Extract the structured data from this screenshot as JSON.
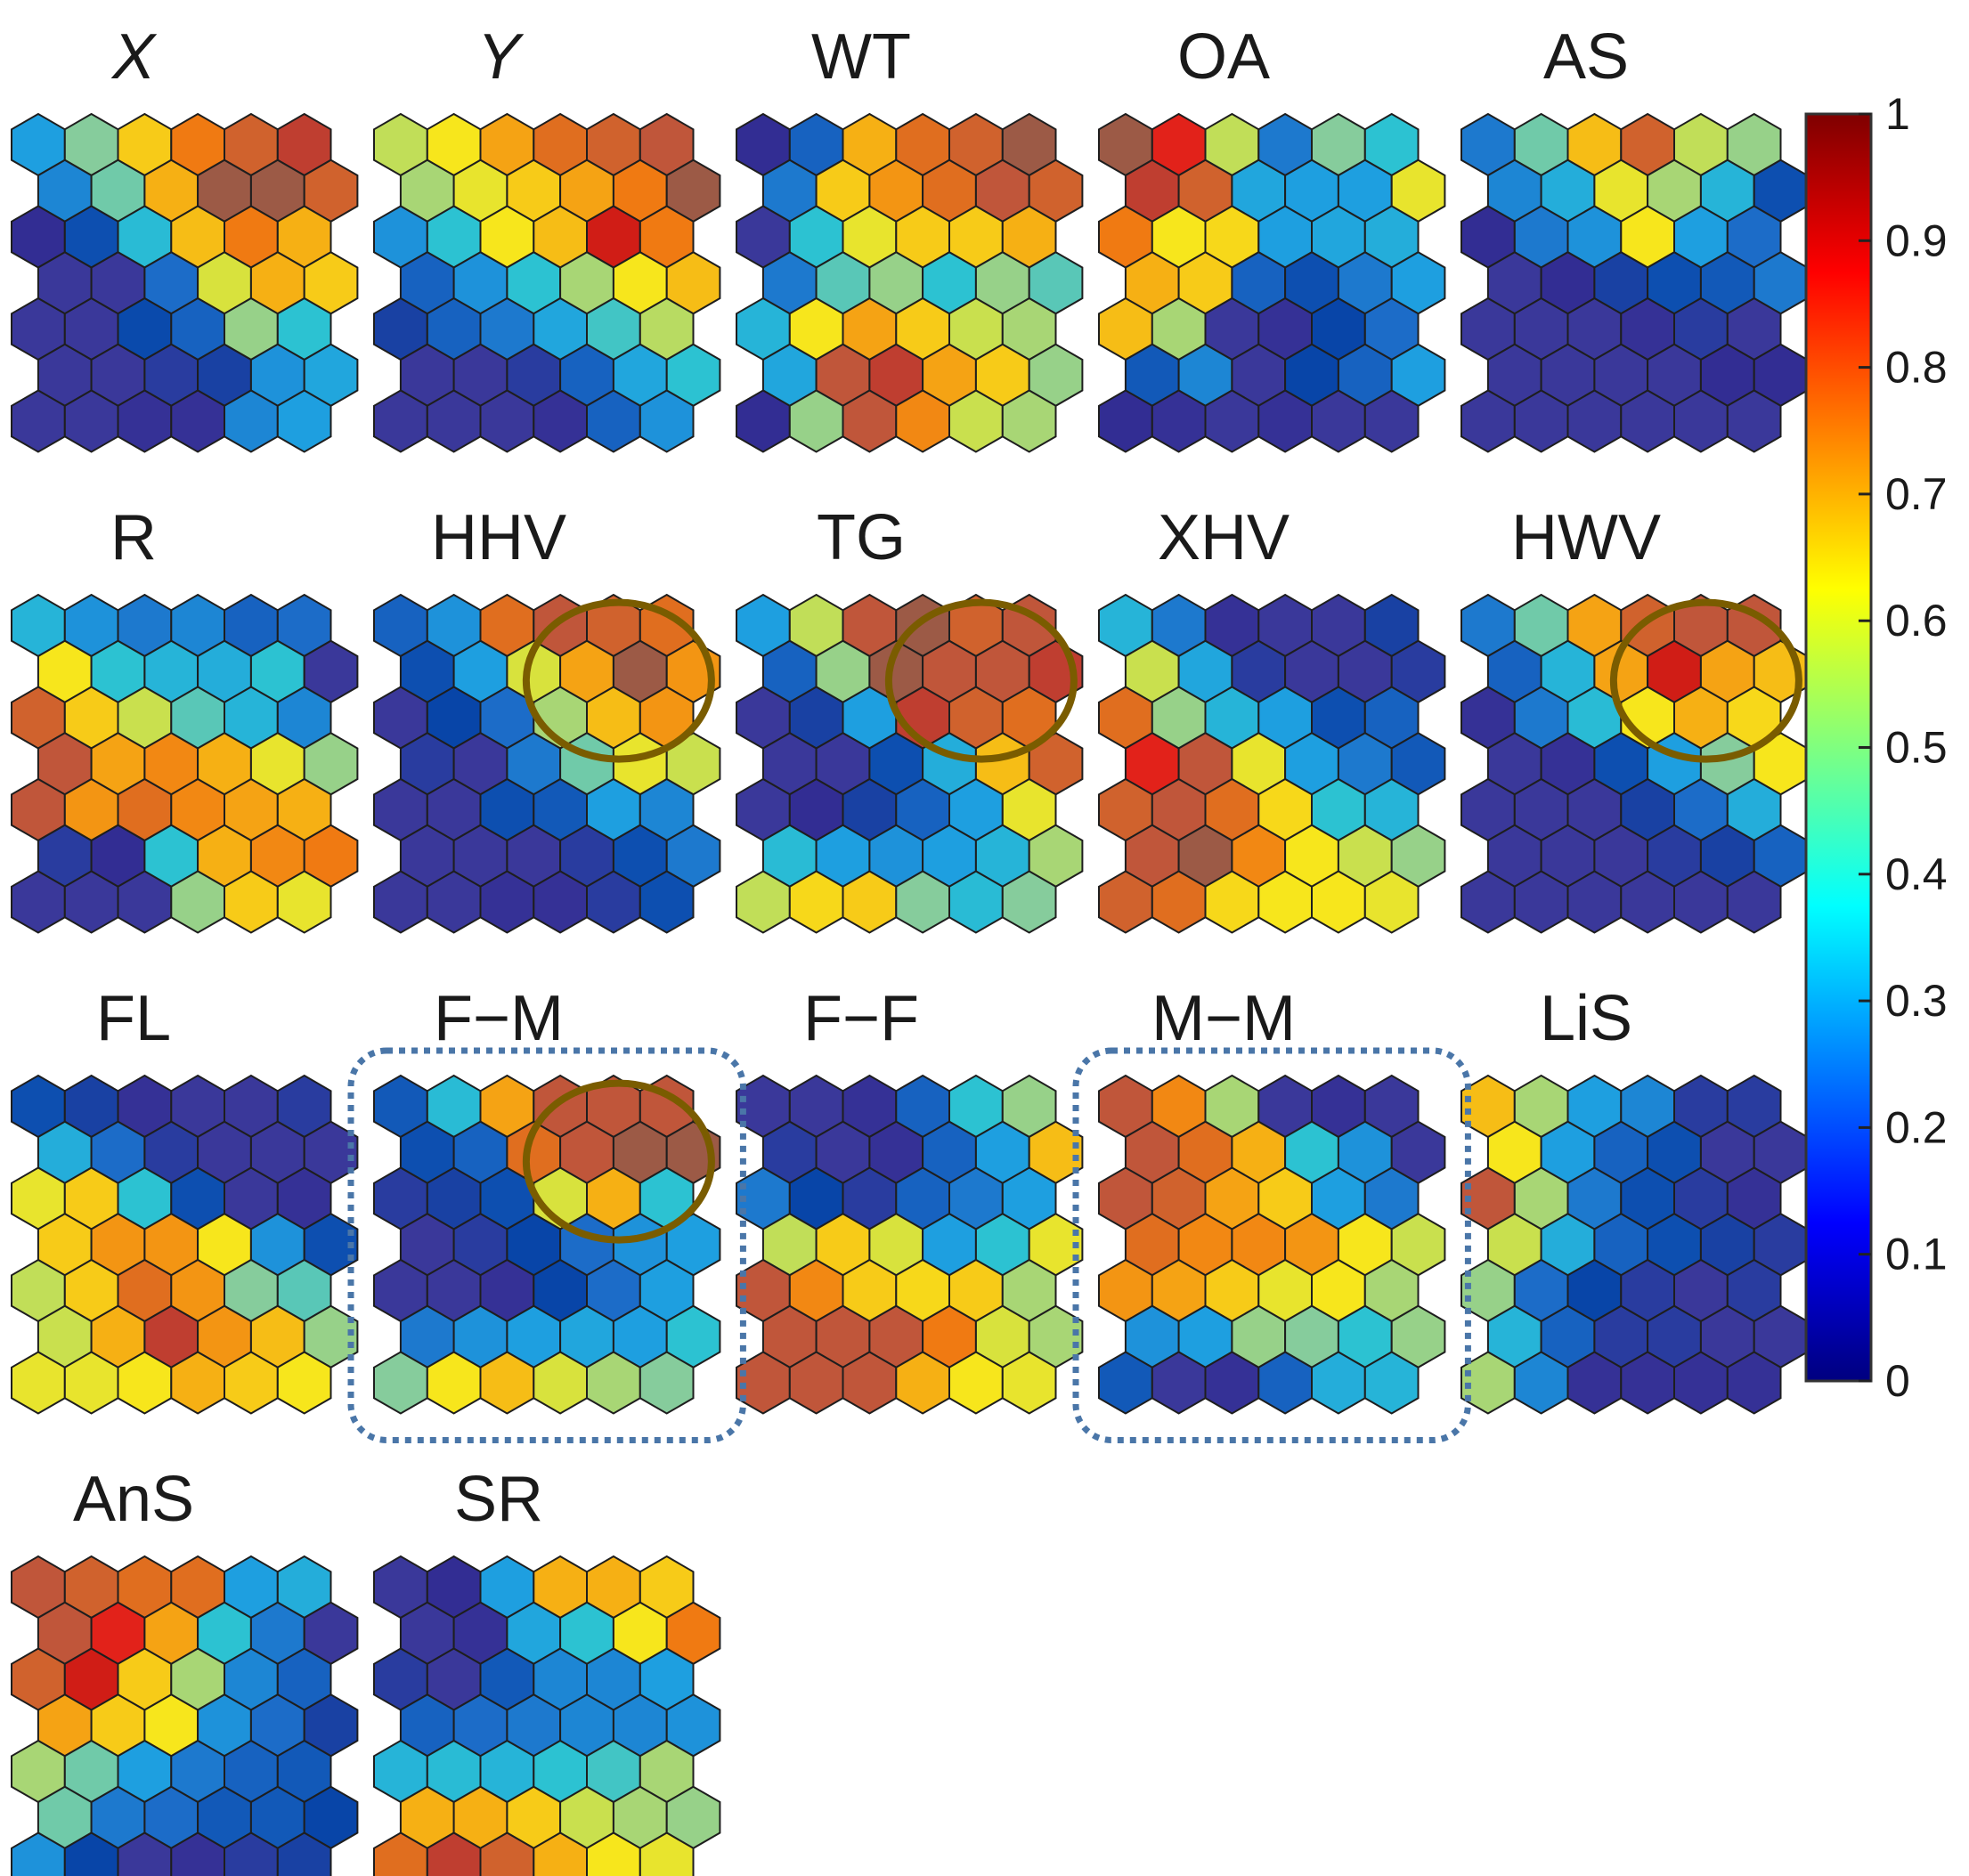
{
  "chart_data": {
    "type": "heatmap",
    "grid_shape": "hexagonal",
    "grid_rows": 7,
    "grid_cols": 6,
    "colormap": "jet",
    "colorbar": {
      "min": 0,
      "max": 1,
      "ticks": [
        "0",
        "0.1",
        "0.2",
        "0.3",
        "0.4",
        "0.5",
        "0.6",
        "0.7",
        "0.8",
        "0.9",
        "1"
      ],
      "placement": "right"
    },
    "panels": [
      {
        "title": "X",
        "italic": true,
        "values": [
          [
            0.3,
            0.48,
            0.66,
            0.78,
            0.82,
            0.88
          ],
          [
            0.26,
            0.46,
            0.7,
            0.86,
            0.86,
            0.82
          ],
          [
            0.05,
            0.16,
            0.38,
            0.68,
            0.78,
            0.7
          ],
          [
            0.08,
            0.08,
            0.22,
            0.58,
            0.7,
            0.66
          ],
          [
            0.08,
            0.08,
            0.15,
            0.2,
            0.5,
            0.4
          ],
          [
            0.08,
            0.08,
            0.1,
            0.12,
            0.28,
            0.32
          ],
          [
            0.08,
            0.08,
            0.06,
            0.06,
            0.26,
            0.3
          ]
        ]
      },
      {
        "title": "Y",
        "italic": true,
        "values": [
          [
            0.55,
            0.62,
            0.72,
            0.8,
            0.82,
            0.84
          ],
          [
            0.52,
            0.6,
            0.66,
            0.72,
            0.78,
            0.86
          ],
          [
            0.28,
            0.4,
            0.62,
            0.68,
            0.92,
            0.78
          ],
          [
            0.2,
            0.28,
            0.4,
            0.52,
            0.62,
            0.68
          ],
          [
            0.12,
            0.2,
            0.24,
            0.32,
            0.42,
            0.54
          ],
          [
            0.08,
            0.08,
            0.1,
            0.2,
            0.32,
            0.4
          ],
          [
            0.08,
            0.08,
            0.08,
            0.06,
            0.2,
            0.28
          ]
        ]
      },
      {
        "title": "WT",
        "values": [
          [
            0.05,
            0.2,
            0.7,
            0.8,
            0.82,
            0.86
          ],
          [
            0.24,
            0.66,
            0.74,
            0.8,
            0.84,
            0.82
          ],
          [
            0.08,
            0.4,
            0.6,
            0.66,
            0.66,
            0.7
          ],
          [
            0.24,
            0.44,
            0.5,
            0.4,
            0.5,
            0.44
          ],
          [
            0.36,
            0.62,
            0.72,
            0.66,
            0.56,
            0.52
          ],
          [
            0.32,
            0.84,
            0.88,
            0.72,
            0.66,
            0.5
          ],
          [
            0.05,
            0.5,
            0.84,
            0.76,
            0.56,
            0.52
          ]
        ]
      },
      {
        "title": "OA",
        "values": [
          [
            0.86,
            0.9,
            0.55,
            0.24,
            0.48,
            0.4
          ],
          [
            0.88,
            0.82,
            0.32,
            0.3,
            0.3,
            0.6
          ],
          [
            0.78,
            0.62,
            0.64,
            0.3,
            0.32,
            0.34
          ],
          [
            0.7,
            0.66,
            0.2,
            0.16,
            0.24,
            0.3
          ],
          [
            0.68,
            0.52,
            0.08,
            0.06,
            0.14,
            0.22
          ],
          [
            0.18,
            0.26,
            0.08,
            0.14,
            0.2,
            0.3
          ],
          [
            0.05,
            0.06,
            0.08,
            0.06,
            0.08,
            0.08
          ]
        ]
      },
      {
        "title": "AS",
        "values": [
          [
            0.24,
            0.46,
            0.68,
            0.82,
            0.55,
            0.5
          ],
          [
            0.26,
            0.34,
            0.6,
            0.52,
            0.36,
            0.16
          ],
          [
            0.05,
            0.24,
            0.28,
            0.62,
            0.3,
            0.22
          ],
          [
            0.08,
            0.05,
            0.12,
            0.16,
            0.18,
            0.24
          ],
          [
            0.08,
            0.08,
            0.08,
            0.06,
            0.1,
            0.08
          ],
          [
            0.08,
            0.08,
            0.08,
            0.08,
            0.05,
            0.05
          ],
          [
            0.08,
            0.08,
            0.08,
            0.08,
            0.08,
            0.08
          ]
        ]
      },
      {
        "title": "R",
        "values": [
          [
            0.36,
            0.28,
            0.24,
            0.26,
            0.2,
            0.22
          ],
          [
            0.62,
            0.4,
            0.36,
            0.34,
            0.4,
            0.08
          ],
          [
            0.82,
            0.66,
            0.56,
            0.44,
            0.36,
            0.26
          ],
          [
            0.84,
            0.72,
            0.76,
            0.7,
            0.6,
            0.5
          ],
          [
            0.84,
            0.74,
            0.8,
            0.76,
            0.72,
            0.7
          ],
          [
            0.1,
            0.05,
            0.4,
            0.7,
            0.76,
            0.78
          ],
          [
            0.08,
            0.08,
            0.08,
            0.5,
            0.66,
            0.6
          ]
        ]
      },
      {
        "title": "HHV",
        "values": [
          [
            0.2,
            0.28,
            0.8,
            0.84,
            0.82,
            0.8
          ],
          [
            0.16,
            0.3,
            0.58,
            0.72,
            0.86,
            0.74
          ],
          [
            0.08,
            0.14,
            0.22,
            0.52,
            0.68,
            0.74
          ],
          [
            0.1,
            0.08,
            0.24,
            0.46,
            0.6,
            0.56
          ],
          [
            0.08,
            0.08,
            0.16,
            0.18,
            0.3,
            0.26
          ],
          [
            0.08,
            0.08,
            0.08,
            0.1,
            0.16,
            0.24
          ],
          [
            0.08,
            0.08,
            0.06,
            0.06,
            0.1,
            0.16
          ]
        ]
      },
      {
        "title": "TG",
        "values": [
          [
            0.3,
            0.55,
            0.84,
            0.86,
            0.82,
            0.84
          ],
          [
            0.2,
            0.5,
            0.86,
            0.84,
            0.84,
            0.88
          ],
          [
            0.08,
            0.12,
            0.3,
            0.88,
            0.82,
            0.8
          ],
          [
            0.08,
            0.08,
            0.16,
            0.34,
            0.68,
            0.82
          ],
          [
            0.08,
            0.05,
            0.12,
            0.2,
            0.3,
            0.6
          ],
          [
            0.38,
            0.3,
            0.28,
            0.3,
            0.36,
            0.52
          ],
          [
            0.55,
            0.64,
            0.66,
            0.48,
            0.38,
            0.48
          ]
        ]
      },
      {
        "title": "XHV",
        "values": [
          [
            0.36,
            0.24,
            0.06,
            0.08,
            0.08,
            0.12
          ],
          [
            0.56,
            0.32,
            0.1,
            0.08,
            0.08,
            0.1
          ],
          [
            0.8,
            0.5,
            0.36,
            0.3,
            0.16,
            0.2
          ],
          [
            0.9,
            0.84,
            0.6,
            0.3,
            0.24,
            0.18
          ],
          [
            0.82,
            0.84,
            0.8,
            0.64,
            0.4,
            0.36
          ],
          [
            0.84,
            0.86,
            0.76,
            0.62,
            0.56,
            0.5
          ],
          [
            0.82,
            0.8,
            0.64,
            0.62,
            0.62,
            0.6
          ]
        ]
      },
      {
        "title": "HWV",
        "values": [
          [
            0.24,
            0.46,
            0.72,
            0.82,
            0.84,
            0.84
          ],
          [
            0.2,
            0.36,
            0.72,
            0.92,
            0.72,
            0.68
          ],
          [
            0.06,
            0.24,
            0.38,
            0.62,
            0.7,
            0.64
          ],
          [
            0.08,
            0.06,
            0.16,
            0.3,
            0.48,
            0.62
          ],
          [
            0.08,
            0.08,
            0.08,
            0.12,
            0.22,
            0.34
          ],
          [
            0.08,
            0.08,
            0.08,
            0.1,
            0.12,
            0.2
          ],
          [
            0.08,
            0.08,
            0.08,
            0.08,
            0.08,
            0.08
          ]
        ]
      },
      {
        "title": "FL",
        "values": [
          [
            0.16,
            0.12,
            0.06,
            0.08,
            0.08,
            0.1
          ],
          [
            0.34,
            0.22,
            0.1,
            0.08,
            0.08,
            0.08
          ],
          [
            0.6,
            0.66,
            0.4,
            0.16,
            0.08,
            0.06
          ],
          [
            0.66,
            0.74,
            0.74,
            0.62,
            0.28,
            0.16
          ],
          [
            0.55,
            0.66,
            0.8,
            0.74,
            0.48,
            0.44
          ],
          [
            0.56,
            0.7,
            0.88,
            0.74,
            0.68,
            0.5
          ],
          [
            0.6,
            0.6,
            0.62,
            0.7,
            0.66,
            0.62
          ]
        ]
      },
      {
        "title": "F−M",
        "values": [
          [
            0.18,
            0.38,
            0.72,
            0.84,
            0.84,
            0.84
          ],
          [
            0.16,
            0.2,
            0.8,
            0.84,
            0.86,
            0.86
          ],
          [
            0.1,
            0.12,
            0.16,
            0.58,
            0.7,
            0.4
          ],
          [
            0.08,
            0.1,
            0.14,
            0.22,
            0.28,
            0.3
          ],
          [
            0.08,
            0.08,
            0.06,
            0.14,
            0.22,
            0.3
          ],
          [
            0.24,
            0.28,
            0.3,
            0.32,
            0.3,
            0.4
          ],
          [
            0.48,
            0.62,
            0.68,
            0.58,
            0.52,
            0.48
          ]
        ]
      },
      {
        "title": "F−F",
        "values": [
          [
            0.08,
            0.08,
            0.06,
            0.2,
            0.4,
            0.5
          ],
          [
            0.1,
            0.08,
            0.06,
            0.2,
            0.3,
            0.68
          ],
          [
            0.24,
            0.14,
            0.1,
            0.2,
            0.24,
            0.3
          ],
          [
            0.55,
            0.66,
            0.58,
            0.3,
            0.4,
            0.6
          ],
          [
            0.84,
            0.76,
            0.66,
            0.64,
            0.66,
            0.52
          ],
          [
            0.84,
            0.84,
            0.84,
            0.78,
            0.58,
            0.52
          ],
          [
            0.84,
            0.84,
            0.84,
            0.7,
            0.62,
            0.6
          ]
        ]
      },
      {
        "title": "M−M",
        "values": [
          [
            0.84,
            0.76,
            0.52,
            0.08,
            0.06,
            0.08
          ],
          [
            0.84,
            0.8,
            0.7,
            0.4,
            0.28,
            0.08
          ],
          [
            0.84,
            0.82,
            0.72,
            0.66,
            0.3,
            0.24
          ],
          [
            0.8,
            0.76,
            0.76,
            0.74,
            0.62,
            0.56
          ],
          [
            0.74,
            0.72,
            0.66,
            0.6,
            0.62,
            0.52
          ],
          [
            0.28,
            0.3,
            0.5,
            0.48,
            0.4,
            0.5
          ],
          [
            0.18,
            0.08,
            0.06,
            0.2,
            0.34,
            0.36
          ]
        ]
      },
      {
        "title": "LiS",
        "values": [
          [
            0.68,
            0.52,
            0.3,
            0.26,
            0.1,
            0.1
          ],
          [
            0.62,
            0.3,
            0.2,
            0.16,
            0.08,
            0.08
          ],
          [
            0.84,
            0.52,
            0.24,
            0.16,
            0.1,
            0.06
          ],
          [
            0.56,
            0.34,
            0.2,
            0.16,
            0.12,
            0.1
          ],
          [
            0.5,
            0.22,
            0.14,
            0.1,
            0.08,
            0.1
          ],
          [
            0.36,
            0.2,
            0.1,
            0.1,
            0.08,
            0.08
          ],
          [
            0.52,
            0.26,
            0.06,
            0.06,
            0.06,
            0.06
          ]
        ]
      },
      {
        "title": "AnS",
        "values": [
          [
            0.84,
            0.82,
            0.8,
            0.8,
            0.3,
            0.34
          ],
          [
            0.84,
            0.9,
            0.72,
            0.4,
            0.24,
            0.08
          ],
          [
            0.82,
            0.92,
            0.66,
            0.52,
            0.26,
            0.2
          ],
          [
            0.72,
            0.66,
            0.62,
            0.28,
            0.22,
            0.12
          ],
          [
            0.52,
            0.46,
            0.3,
            0.24,
            0.2,
            0.18
          ],
          [
            0.46,
            0.24,
            0.22,
            0.18,
            0.18,
            0.14
          ],
          [
            0.28,
            0.14,
            0.08,
            0.06,
            0.1,
            0.12
          ]
        ]
      },
      {
        "title": "SR",
        "values": [
          [
            0.08,
            0.05,
            0.3,
            0.7,
            0.7,
            0.66
          ],
          [
            0.08,
            0.06,
            0.32,
            0.4,
            0.62,
            0.78
          ],
          [
            0.1,
            0.08,
            0.18,
            0.26,
            0.26,
            0.3
          ],
          [
            0.2,
            0.22,
            0.24,
            0.26,
            0.26,
            0.28
          ],
          [
            0.36,
            0.38,
            0.36,
            0.4,
            0.42,
            0.52
          ],
          [
            0.7,
            0.7,
            0.66,
            0.56,
            0.52,
            0.5
          ],
          [
            0.8,
            0.88,
            0.82,
            0.7,
            0.62,
            0.6
          ]
        ]
      }
    ],
    "highlights": {
      "circled_panels": [
        "HHV",
        "TG",
        "HWV",
        "F−M"
      ],
      "boxed_panels": [
        "F−M",
        "M−M"
      ],
      "circle_color": "#7a5c00",
      "box_color": "#4a76a8"
    }
  }
}
